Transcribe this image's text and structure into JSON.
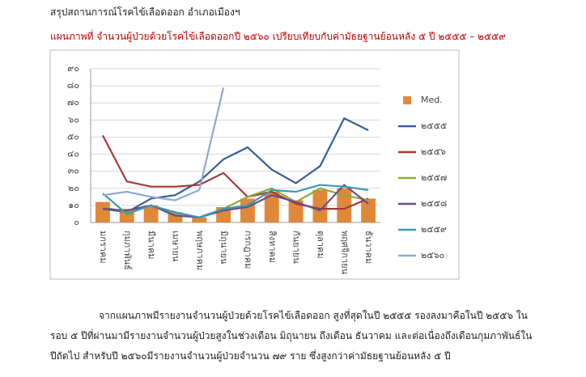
{
  "header": {
    "title": "สรุปสถานการณ์โรคไข้เลือดออก อำเภอเมืองฯ"
  },
  "caption": "แผนภาพที่ จำนวนผู้ป่วยด้วยโรคไข้เลือดออกปี ๒๕๖๐ เปรียบเทียบกับค่ามัธยฐานย้อนหลัง ๕  ปี ๒๕๕๕ – ๒๕๕๙",
  "chart_data": {
    "type": "combo",
    "categories": [
      "มกราคม",
      "กุมภาพันธ์",
      "มีนาคม",
      "เมษายน",
      "พฤษภาคม",
      "มิถุนายน",
      "กรกฎาคม",
      "สิงหาคม",
      "กันยายน",
      "ตุลาคม",
      "พฤศจิกายน",
      "ธันวาคม"
    ],
    "series": [
      {
        "name": "Med.",
        "type": "bar",
        "color": "#e0883a",
        "values": [
          12,
          8,
          10,
          6,
          3,
          9,
          14,
          18,
          13,
          19,
          20,
          14
        ]
      },
      {
        "name": "๒๕๕๕",
        "type": "line",
        "color": "#3a5f95",
        "values": [
          8,
          6,
          14,
          16,
          24,
          37,
          44,
          31,
          23,
          33,
          61,
          54
        ]
      },
      {
        "name": "๒๕๕๖",
        "type": "line",
        "color": "#a53a36",
        "values": [
          51,
          24,
          21,
          21,
          22,
          29,
          15,
          18,
          11,
          8,
          8,
          14
        ]
      },
      {
        "name": "๒๕๕๗",
        "type": "line",
        "color": "#8eaa3e",
        "values": [
          9,
          6,
          10,
          5,
          3,
          8,
          15,
          20,
          12,
          20,
          16,
          13
        ]
      },
      {
        "name": "๒๕๕๘",
        "type": "line",
        "color": "#6a4e8a",
        "values": [
          8,
          7,
          10,
          4,
          3,
          7,
          9,
          16,
          12,
          7,
          22,
          11
        ]
      },
      {
        "name": "๒๕๕๙",
        "type": "line",
        "color": "#3c9ab0",
        "values": [
          17,
          5,
          10,
          6,
          3,
          8,
          10,
          19,
          18,
          22,
          21,
          19
        ]
      },
      {
        "name": "๒๕๖๐",
        "type": "line",
        "color": "#8fa8d0",
        "values": [
          16,
          18,
          15,
          13,
          19,
          79,
          null,
          null,
          null,
          null,
          null,
          null
        ]
      }
    ],
    "ylim": [
      0,
      90
    ],
    "yticks": [
      {
        "value": 0,
        "label": "๐"
      },
      {
        "value": 10,
        "label": "๑๐"
      },
      {
        "value": 20,
        "label": "๒๐"
      },
      {
        "value": 30,
        "label": "๓๐"
      },
      {
        "value": 40,
        "label": "๔๐"
      },
      {
        "value": 50,
        "label": "๕๐"
      },
      {
        "value": 60,
        "label": "๖๐"
      },
      {
        "value": 70,
        "label": "๗๐"
      },
      {
        "value": 80,
        "label": "๘๐"
      },
      {
        "value": 90,
        "label": "๙๐"
      }
    ],
    "grid": true,
    "legend": "right"
  },
  "paragraph": [
    "จากแผนภาพมีรายงานจำนวนผู้ป่วยด้วยโรคไข้เลือดออก สูงที่สุดในปี ๒๕๕๕ รองลงมาคือในปี ๒๕๕๖  ใน",
    "รอบ ๕ ปีที่ผ่านมามีรายงานจำนวนผู้ป่วยสูงในช่วงเดือน มิถุนายน ถึงเดือน ธันวาคม และต่อเนื่องถึงเดือนกุมภาพันธ์ใน",
    "ปีถัดไป สำหรับปี ๒๕๖๐มีรายงานจำนวนผู้ป่วยจำนวน ๗๙ ราย ซึ่งสูงกว่าค่ามัธยฐานย้อนหลัง ๕ ปี"
  ]
}
